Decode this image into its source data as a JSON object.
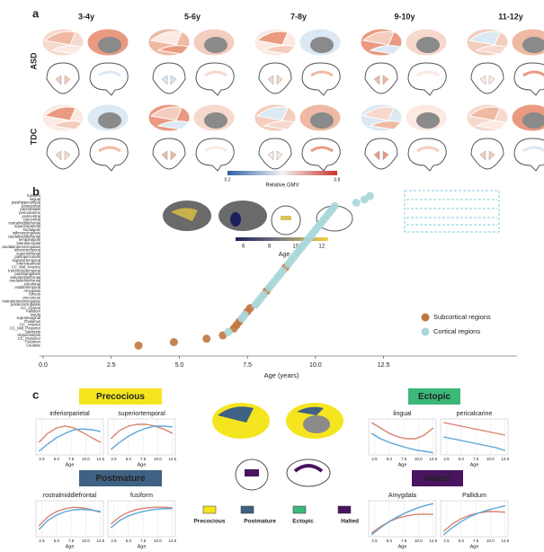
{
  "figure": {
    "panel_a": {
      "label": "a",
      "ages": [
        "3-4y",
        "5-6y",
        "7-8y",
        "9-10y",
        "11-12y"
      ],
      "groups": [
        "ASD",
        "TDC"
      ],
      "colorbar": {
        "title": "Relative.GMV",
        "ticks": [
          0.2,
          0.8
        ],
        "lim": [
          0.2,
          0.8
        ]
      }
    },
    "panel_b": {
      "label": "b"
    },
    "panel_c": {
      "label": "c",
      "groups": [
        {
          "name": "Precocious",
          "color": "#f5e51e"
        },
        {
          "name": "Ectopic",
          "color": "#3cb878"
        },
        {
          "name": "Postmature",
          "color": "#3f6183"
        },
        {
          "name": "Halted",
          "color": "#4a1560"
        }
      ]
    }
  },
  "chart_data": [
    {
      "type": "scatter",
      "xlabel": "Age (years)",
      "xlim": [
        0,
        17.4
      ],
      "xticks": [
        {
          "value": 0,
          "label": "0.0"
        },
        2.5,
        {
          "value": 5,
          "label": "5.0"
        },
        7.5,
        {
          "value": 10,
          "label": "10.0"
        },
        12.5
      ],
      "legend": "lower right",
      "categories": [
        "fusiform",
        "lingual",
        "parahippocampal",
        "paracentral",
        "parsorbitalis",
        "pericalcarine",
        "postcentral",
        "precentral",
        "rostralmiddlefrontal",
        "superiorparietal",
        "frontalpole",
        "isthmuscingulate",
        "caudalmiddlefrontal",
        "temporalpole",
        "lateraloccipital",
        "caudalanteriorcingulate",
        "inferiortemporal",
        "superiorfrontal",
        "parsopercularis",
        "superiortemporal",
        "inferiorparietal",
        "CC_Mid_Anterior",
        "transversetemporal",
        "parstriangularis",
        "lateralorbitofrontal",
        "medialorbitofrontal",
        "entorhinal",
        "middletemporal",
        "Amygdala",
        "cuneus",
        "precuneus",
        "rostralanteriorcingulate",
        "posteriorcingulate",
        "CC_Central",
        "Pallidum",
        "insula",
        "supramarginal",
        "Thalamus",
        "CC_Anterior",
        "CC_Mid_Posterior",
        "bankssts",
        "Hippocampus",
        "CC_Posterior",
        "Putamen",
        "Caudate"
      ],
      "series": [
        {
          "name": "Subcortical regions",
          "color": "#c0773f",
          "values": [
            null,
            null,
            null,
            null,
            null,
            null,
            null,
            null,
            null,
            null,
            null,
            null,
            null,
            null,
            null,
            null,
            null,
            null,
            null,
            null,
            null,
            8.9,
            null,
            null,
            null,
            null,
            null,
            null,
            8.2,
            null,
            null,
            null,
            null,
            7.6,
            7.5,
            null,
            null,
            7.2,
            7.1,
            7.0,
            null,
            6.6,
            6.0,
            4.8,
            3.5
          ]
        },
        {
          "name": "Cortical regions",
          "color": "#a9d6d9",
          "values": [
            12.0,
            11.8,
            11.5,
            10.7,
            10.6,
            10.5,
            10.4,
            10.3,
            10.2,
            10.1,
            10.0,
            9.9,
            9.8,
            9.7,
            9.6,
            9.5,
            9.4,
            9.3,
            9.2,
            9.1,
            9.0,
            null,
            8.8,
            8.7,
            8.6,
            8.5,
            8.4,
            8.3,
            null,
            8.1,
            8.0,
            7.9,
            7.8,
            null,
            null,
            7.4,
            7.3,
            null,
            null,
            null,
            6.8,
            null,
            null,
            null,
            null
          ]
        }
      ],
      "colorbar": {
        "title": "Age",
        "ticks": [
          6,
          8,
          10,
          12
        ],
        "lim": [
          5.4,
          12.5
        ]
      }
    },
    {
      "type": "line",
      "title": "inferiorparietal",
      "xlabel": "Age",
      "x": [
        2,
        3.5,
        5,
        6.5,
        8,
        9.5,
        11,
        12.5
      ],
      "xlim": [
        1.5,
        13
      ],
      "ylim": [
        0,
        1
      ],
      "xticks": [
        2.5,
        {
          "value": 5,
          "label": "5.0"
        },
        7.5,
        {
          "value": 10,
          "label": "10.0"
        },
        12.5
      ],
      "series": [
        {
          "color": "#d9826f",
          "values": [
            0.35,
            0.6,
            0.75,
            0.8,
            0.75,
            0.62,
            0.48,
            0.35
          ]
        },
        {
          "color": "#5ba6d6",
          "values": [
            0.1,
            0.3,
            0.48,
            0.6,
            0.7,
            0.72,
            0.7,
            0.65
          ]
        }
      ]
    },
    {
      "type": "line",
      "title": "superiortemporal",
      "xlabel": "Age",
      "x": [
        2,
        3.5,
        5,
        6.5,
        8,
        9.5,
        11,
        12.5
      ],
      "xlim": [
        1.5,
        13
      ],
      "ylim": [
        0,
        1
      ],
      "xticks": [
        2.5,
        {
          "value": 5,
          "label": "5.0"
        },
        7.5,
        {
          "value": 10,
          "label": "10.0"
        },
        12.5
      ],
      "series": [
        {
          "color": "#d9826f",
          "values": [
            0.45,
            0.68,
            0.8,
            0.85,
            0.85,
            0.8,
            0.72,
            0.6
          ]
        },
        {
          "color": "#5ba6d6",
          "values": [
            0.15,
            0.35,
            0.52,
            0.65,
            0.74,
            0.8,
            0.8,
            0.78
          ]
        }
      ]
    },
    {
      "type": "line",
      "title": "lingual",
      "xlabel": "Age",
      "x": [
        2,
        3.5,
        5,
        6.5,
        8,
        9.5,
        11,
        12.5
      ],
      "xlim": [
        1.5,
        13
      ],
      "ylim": [
        0,
        1
      ],
      "xticks": [
        2.5,
        {
          "value": 5,
          "label": "5.0"
        },
        7.5,
        {
          "value": 10,
          "label": "10.0"
        },
        12.5
      ],
      "series": [
        {
          "color": "#d9826f",
          "values": [
            0.9,
            0.75,
            0.6,
            0.5,
            0.45,
            0.45,
            0.55,
            0.75
          ]
        },
        {
          "color": "#5ba6d6",
          "values": [
            0.6,
            0.45,
            0.35,
            0.27,
            0.2,
            0.14,
            0.1,
            0.06
          ]
        }
      ]
    },
    {
      "type": "line",
      "title": "pericalcarine",
      "xlabel": "Age",
      "x": [
        2,
        3.5,
        5,
        6.5,
        8,
        9.5,
        11,
        12.5
      ],
      "xlim": [
        1.5,
        13
      ],
      "ylim": [
        0,
        1
      ],
      "xticks": [
        2.5,
        {
          "value": 5,
          "label": "5.0"
        },
        7.5,
        {
          "value": 10,
          "label": "10.0"
        },
        12.5
      ],
      "series": [
        {
          "color": "#d9826f",
          "values": [
            0.9,
            0.85,
            0.8,
            0.75,
            0.7,
            0.65,
            0.6,
            0.55
          ]
        },
        {
          "color": "#5ba6d6",
          "values": [
            0.5,
            0.45,
            0.4,
            0.35,
            0.3,
            0.25,
            0.2,
            0.12
          ]
        }
      ]
    },
    {
      "type": "line",
      "title": "rostralmiddlefrontal",
      "xlabel": "Age",
      "x": [
        2,
        3.5,
        5,
        6.5,
        8,
        9.5,
        11,
        12.5
      ],
      "xlim": [
        1.5,
        13
      ],
      "ylim": [
        0,
        1
      ],
      "xticks": [
        2.5,
        {
          "value": 5,
          "label": "5.0"
        },
        7.5,
        {
          "value": 10,
          "label": "10.0"
        },
        12.5
      ],
      "series": [
        {
          "color": "#d9826f",
          "values": [
            0.3,
            0.55,
            0.7,
            0.78,
            0.82,
            0.8,
            0.75,
            0.68
          ]
        },
        {
          "color": "#5ba6d6",
          "values": [
            0.2,
            0.45,
            0.6,
            0.7,
            0.75,
            0.76,
            0.74,
            0.7
          ]
        }
      ]
    },
    {
      "type": "line",
      "title": "fusiform",
      "xlabel": "Age",
      "x": [
        2,
        3.5,
        5,
        6.5,
        8,
        9.5,
        11,
        12.5
      ],
      "xlim": [
        1.5,
        13
      ],
      "ylim": [
        0,
        1
      ],
      "xticks": [
        2.5,
        {
          "value": 5,
          "label": "5.0"
        },
        7.5,
        {
          "value": 10,
          "label": "10.0"
        },
        12.5
      ],
      "series": [
        {
          "color": "#d9826f",
          "values": [
            0.35,
            0.55,
            0.68,
            0.76,
            0.8,
            0.82,
            0.82,
            0.8
          ]
        },
        {
          "color": "#5ba6d6",
          "values": [
            0.25,
            0.45,
            0.58,
            0.66,
            0.72,
            0.76,
            0.78,
            0.78
          ]
        }
      ]
    },
    {
      "type": "line",
      "title": "Amygdala",
      "xlabel": "Age",
      "x": [
        2,
        3.5,
        5,
        6.5,
        8,
        9.5,
        11,
        12.5
      ],
      "xlim": [
        1.5,
        13
      ],
      "ylim": [
        0,
        1
      ],
      "xticks": [
        2.5,
        {
          "value": 5,
          "label": "5.0"
        },
        7.5,
        {
          "value": 10,
          "label": "10.0"
        },
        12.5
      ],
      "series": [
        {
          "color": "#d9826f",
          "values": [
            0.1,
            0.28,
            0.42,
            0.52,
            0.58,
            0.62,
            0.63,
            0.62
          ]
        },
        {
          "color": "#5ba6d6",
          "values": [
            0.05,
            0.25,
            0.42,
            0.56,
            0.68,
            0.78,
            0.86,
            0.92
          ]
        }
      ]
    },
    {
      "type": "line",
      "title": "Pallidum",
      "xlabel": "Age",
      "x": [
        2,
        3.5,
        5,
        6.5,
        8,
        9.5,
        11,
        12.5
      ],
      "xlim": [
        1.5,
        13
      ],
      "ylim": [
        0,
        1
      ],
      "xticks": [
        2.5,
        {
          "value": 5,
          "label": "5.0"
        },
        7.5,
        {
          "value": 10,
          "label": "10.0"
        },
        12.5
      ],
      "series": [
        {
          "color": "#d9826f",
          "values": [
            0.15,
            0.35,
            0.5,
            0.6,
            0.66,
            0.7,
            0.7,
            0.68
          ]
        },
        {
          "color": "#5ba6d6",
          "values": [
            0.05,
            0.25,
            0.42,
            0.56,
            0.66,
            0.74,
            0.8,
            0.86
          ]
        }
      ]
    }
  ]
}
